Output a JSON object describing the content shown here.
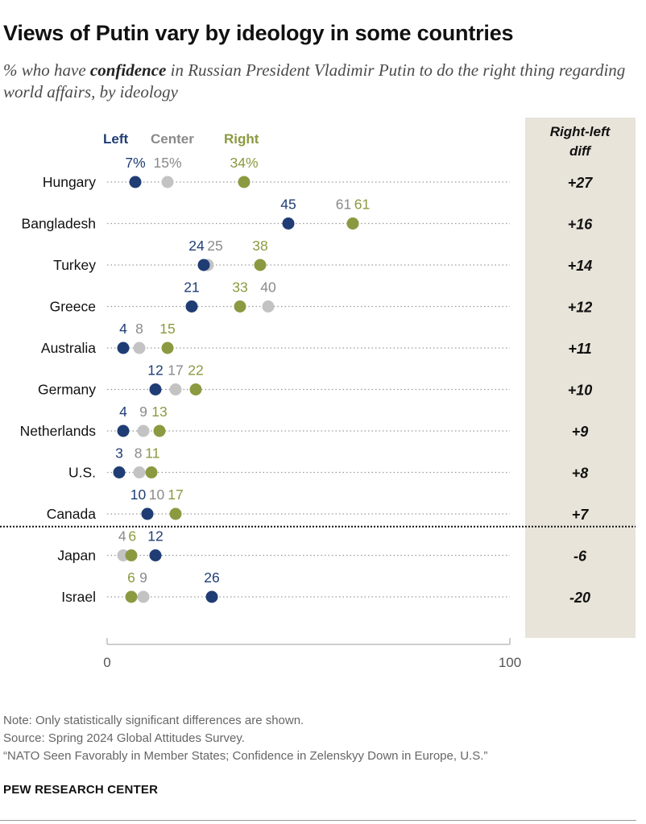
{
  "title": "Views of Putin vary by ideology in some countries",
  "subtitle": {
    "pre": "% who have ",
    "emph": "confidence",
    "post": " in Russian President Vladimir Putin to do the right thing regarding world affairs, by ideology"
  },
  "diff_header": "Right-left diff",
  "colors": {
    "left": "#1f3d74",
    "center": "#c3c3c3",
    "right": "#8b9a40",
    "center_label": "#8a8a8a",
    "right_label": "#8b9a40",
    "panel": "#e8e4da"
  },
  "chart_data": {
    "type": "dot",
    "xlim": [
      0,
      100
    ],
    "x_ticks": [
      "0",
      "100"
    ],
    "legend": [
      "Left",
      "Center",
      "Right"
    ],
    "series_keys": [
      "left",
      "center",
      "right"
    ],
    "rows": [
      {
        "country": "Hungary",
        "left": 7,
        "center": 15,
        "right": 34,
        "labels": {
          "left": "7%",
          "center": "15%",
          "right": "34%"
        },
        "diff": "+27"
      },
      {
        "country": "Bangladesh",
        "left": 45,
        "center": 61,
        "right": 61,
        "labels": {
          "left": "45",
          "center": "61",
          "right": "61"
        },
        "diff": "+16"
      },
      {
        "country": "Turkey",
        "left": 24,
        "center": 25,
        "right": 38,
        "labels": {
          "left": "24",
          "center": "25",
          "right": "38"
        },
        "diff": "+14"
      },
      {
        "country": "Greece",
        "left": 21,
        "center": 40,
        "right": 33,
        "labels": {
          "left": "21",
          "center": "40",
          "right": "33"
        },
        "diff": "+12"
      },
      {
        "country": "Australia",
        "left": 4,
        "center": 8,
        "right": 15,
        "labels": {
          "left": "4",
          "center": "8",
          "right": "15"
        },
        "diff": "+11"
      },
      {
        "country": "Germany",
        "left": 12,
        "center": 17,
        "right": 22,
        "labels": {
          "left": "12",
          "center": "17",
          "right": "22"
        },
        "diff": "+10"
      },
      {
        "country": "Netherlands",
        "left": 4,
        "center": 9,
        "right": 13,
        "labels": {
          "left": "4",
          "center": "9",
          "right": "13"
        },
        "diff": "+9"
      },
      {
        "country": "U.S.",
        "left": 3,
        "center": 8,
        "right": 11,
        "labels": {
          "left": "3",
          "center": "8",
          "right": "11"
        },
        "diff": "+8"
      },
      {
        "country": "Canada",
        "left": 10,
        "center": 10,
        "right": 17,
        "labels": {
          "left": "10",
          "center": "10",
          "right": "17"
        },
        "diff": "+7"
      },
      {
        "country": "Japan",
        "left": 12,
        "center": 4,
        "right": 6,
        "labels": {
          "left": "12",
          "center": "4",
          "right": "6"
        },
        "diff": "-6"
      },
      {
        "country": "Israel",
        "left": 26,
        "center": 9,
        "right": 6,
        "labels": {
          "left": "26",
          "center": "9",
          "right": "6"
        },
        "diff": "-20"
      }
    ]
  },
  "notes": {
    "note": "Note: Only statistically significant differences are shown.",
    "source": "Source: Spring 2024 Global Attitudes Survey.",
    "report": "“NATO Seen Favorably in Member States; Confidence in Zelenskyy Down in Europe, U.S.”"
  },
  "footer": "PEW RESEARCH CENTER"
}
